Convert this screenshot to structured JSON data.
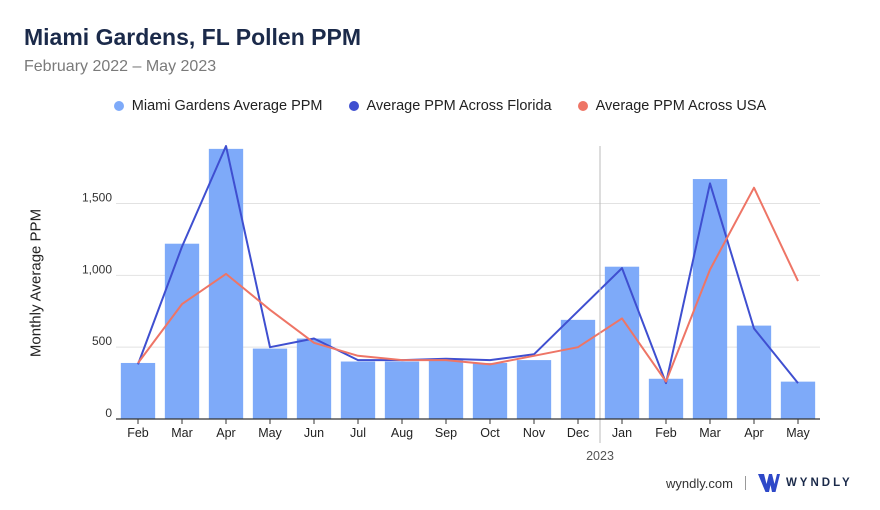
{
  "header": {
    "title": "Miami Gardens, FL Pollen PPM",
    "subtitle": "February 2022 – May 2023"
  },
  "footer": {
    "site": "wyndly.com",
    "brand": "WYNDLY"
  },
  "colors": {
    "bars": "#7eaaf9",
    "florida": "#3f4fd0",
    "usa": "#ee7566",
    "grid": "#e2e2e2",
    "axis": "#333333",
    "divider": "#bbbbbb"
  },
  "chart_data": {
    "type": "bar",
    "ylabel": "Monthly Average PPM",
    "ylim": [
      0,
      1900
    ],
    "yticks": [
      0,
      500,
      1000,
      1500
    ],
    "ytick_labels": [
      "0",
      "500",
      "1,000",
      "1,500"
    ],
    "categories": [
      "Feb",
      "Mar",
      "Apr",
      "May",
      "Jun",
      "Jul",
      "Aug",
      "Sep",
      "Oct",
      "Nov",
      "Dec",
      "Jan",
      "Feb",
      "Mar",
      "Apr",
      "May"
    ],
    "year_marker": {
      "label": "2023",
      "before_index": 11
    },
    "series": [
      {
        "name": "Miami Gardens Average PPM",
        "kind": "bar",
        "values": [
          390,
          1220,
          1880,
          490,
          560,
          400,
          400,
          420,
          390,
          410,
          690,
          1060,
          280,
          1670,
          650,
          260
        ]
      },
      {
        "name": "Average PPM Across Florida",
        "kind": "line",
        "values": [
          380,
          1200,
          1900,
          500,
          560,
          410,
          410,
          420,
          410,
          450,
          750,
          1050,
          250,
          1640,
          630,
          250
        ]
      },
      {
        "name": "Average PPM Across USA",
        "kind": "line",
        "values": [
          390,
          800,
          1010,
          760,
          530,
          440,
          410,
          410,
          380,
          440,
          500,
          700,
          260,
          1040,
          1610,
          960
        ]
      }
    ]
  }
}
